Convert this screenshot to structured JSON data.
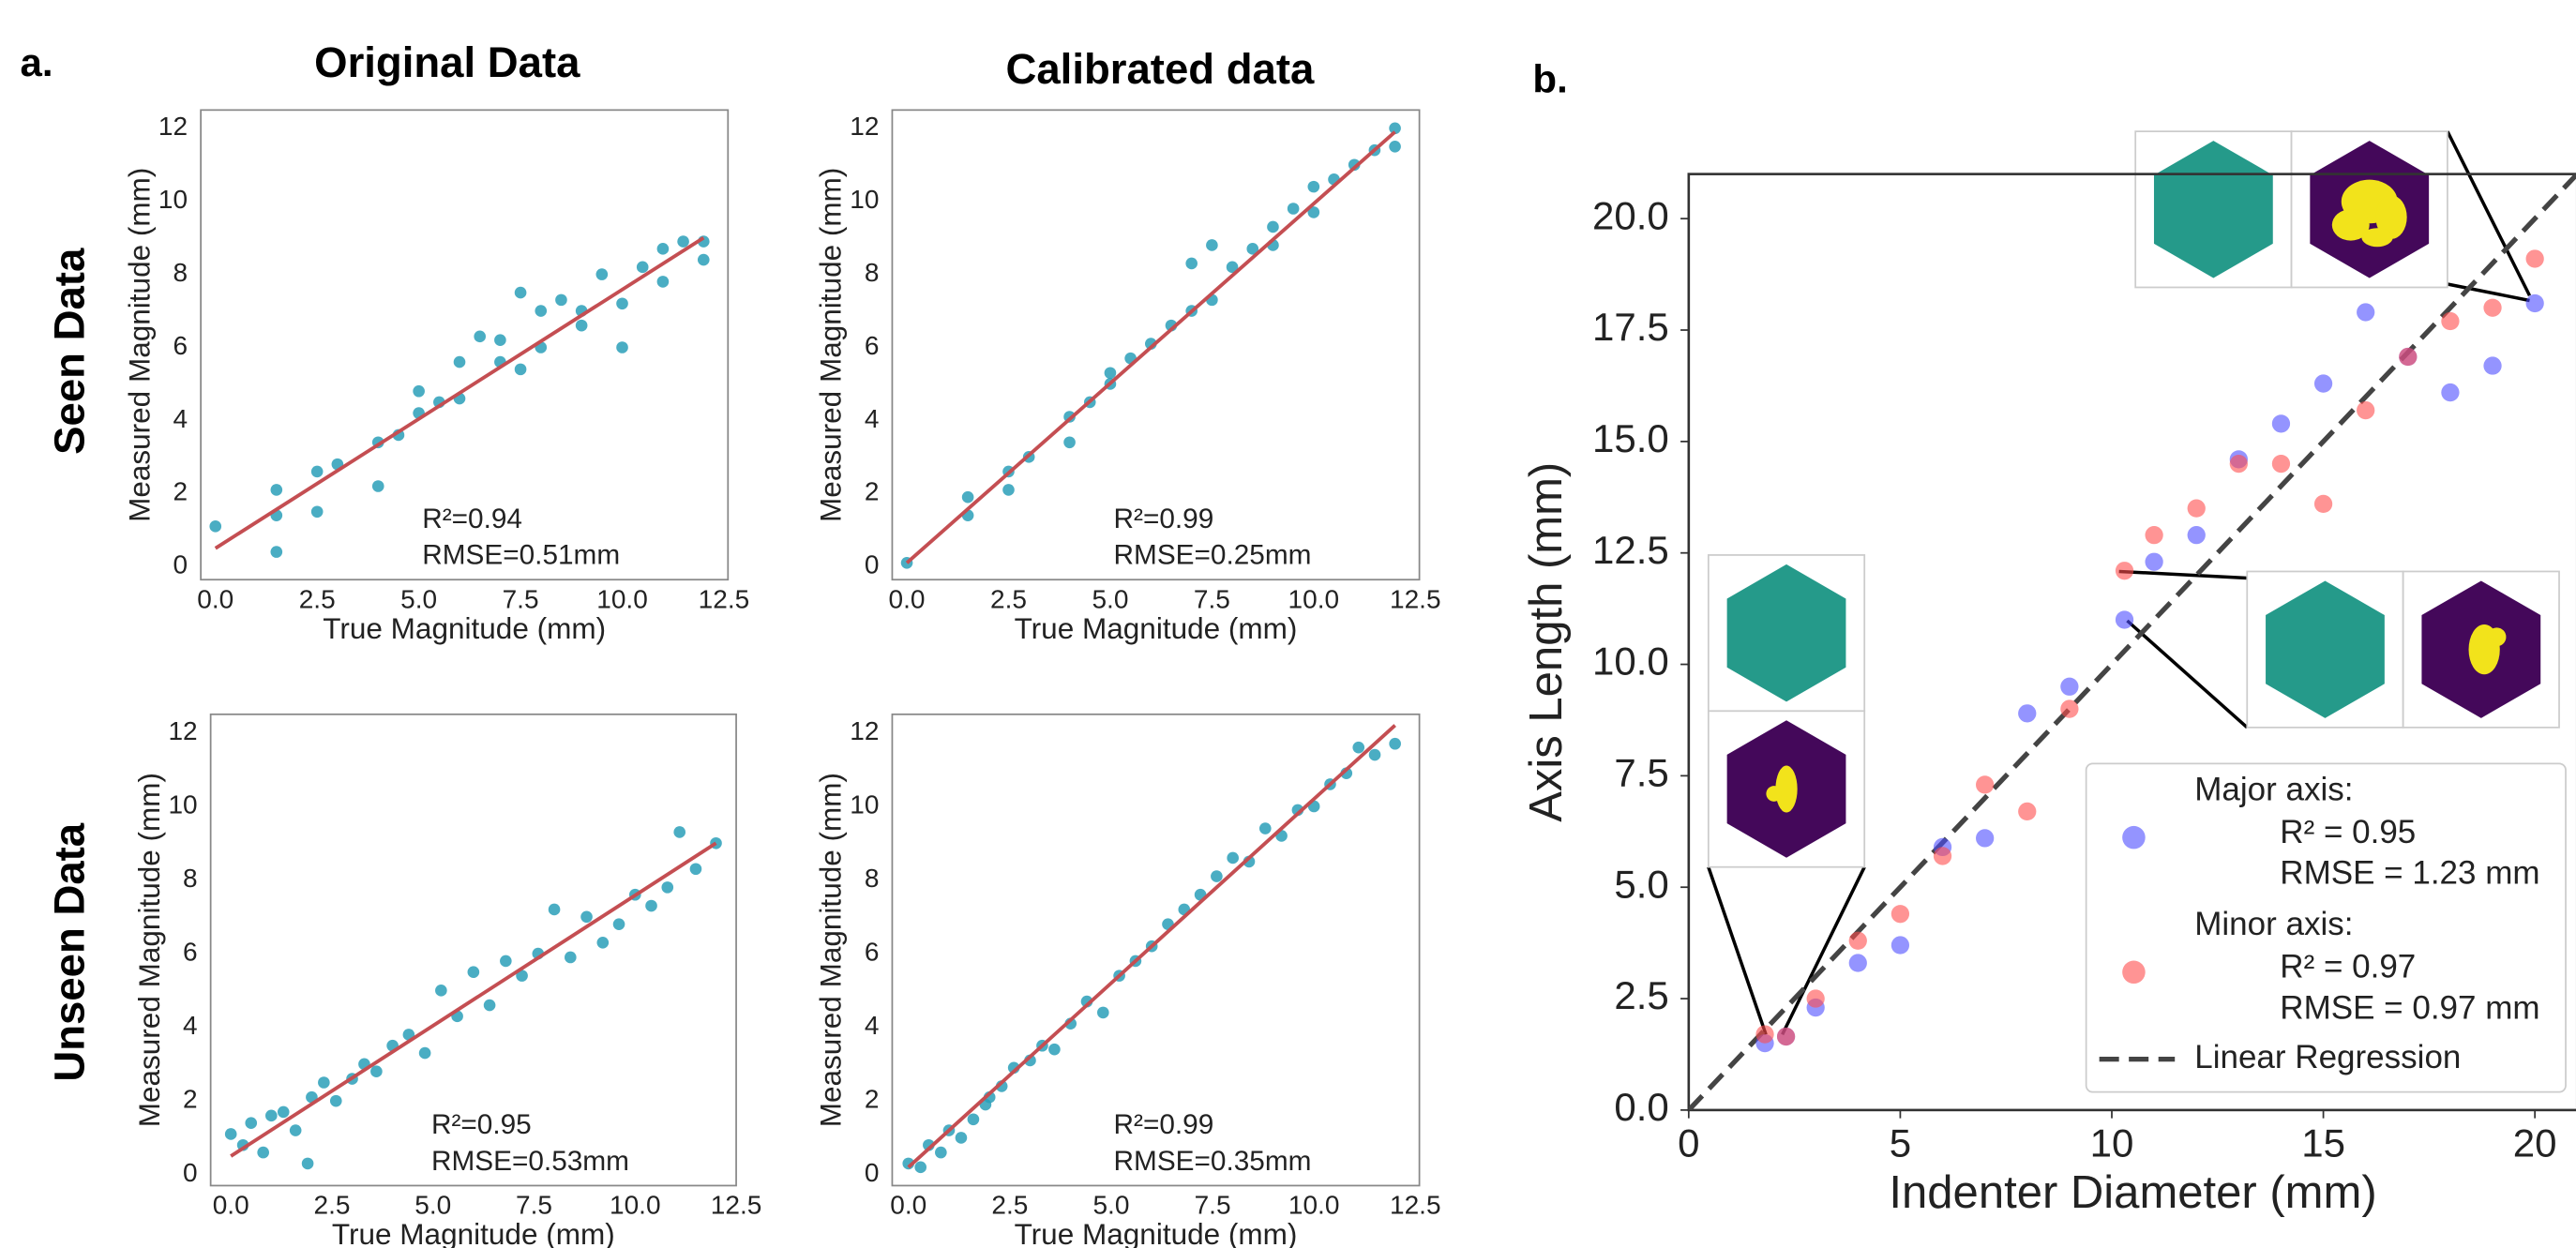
{
  "figure": {
    "panel_a_label": "a.",
    "panel_b_label": "b.",
    "column_titles": [
      "Original Data",
      "Calibrated data"
    ],
    "row_titles": [
      "Seen Data",
      "Unseen Data"
    ]
  },
  "chart_data": [
    {
      "type": "scatter",
      "xlabel": "True Magnitude (mm)",
      "ylabel": "Measured Magnitude (mm)",
      "xlim": [
        -0.36,
        12.6
      ],
      "ylim": [
        -0.36,
        12.5
      ],
      "xticks": [
        {
          "value": 0,
          "label": "0.0"
        },
        2.5,
        {
          "value": 5,
          "label": "5.0"
        },
        7.5,
        {
          "value": 10,
          "label": "10.0"
        },
        12.5
      ],
      "yticks": [
        0,
        2,
        4,
        6,
        8,
        10,
        12
      ],
      "color": "#2a9fb8",
      "x": [
        0,
        1.5,
        1.5,
        1.5,
        2.5,
        2.5,
        3,
        4,
        4,
        4.5,
        5,
        5,
        5.5,
        6,
        6,
        6.5,
        7,
        7,
        7.5,
        7.5,
        8,
        8,
        8.5,
        9,
        9,
        9.5,
        10,
        10,
        10.5,
        11,
        11,
        11.5,
        12,
        12
      ],
      "values": [
        1.1,
        2.1,
        1.4,
        0.4,
        2.6,
        1.5,
        2.8,
        3.4,
        2.2,
        3.6,
        4.8,
        4.2,
        4.5,
        5.6,
        4.6,
        6.3,
        5.6,
        6.2,
        7.5,
        5.4,
        7.0,
        6.0,
        7.3,
        7.0,
        6.6,
        8.0,
        7.2,
        6.0,
        8.2,
        8.7,
        7.8,
        8.9,
        8.9,
        8.4
      ],
      "fit": {
        "x": [
          0,
          12
        ],
        "values": [
          0.5,
          9
        ],
        "color": "#c44e52"
      },
      "annotations": [
        "R²=0.94",
        "RMSE=0.51mm"
      ]
    },
    {
      "type": "scatter",
      "xlabel": "True Magnitude (mm)",
      "ylabel": "Measured Magnitude (mm)",
      "xlim": [
        -0.36,
        12.6
      ],
      "ylim": [
        -0.36,
        12.5
      ],
      "xticks": [
        {
          "value": 0,
          "label": "0.0"
        },
        2.5,
        {
          "value": 5,
          "label": "5.0"
        },
        7.5,
        {
          "value": 10,
          "label": "10.0"
        },
        12.5
      ],
      "yticks": [
        0,
        2,
        4,
        6,
        8,
        10,
        12
      ],
      "color": "#2a9fb8",
      "x": [
        0,
        1.5,
        1.5,
        2.5,
        2.5,
        3,
        4,
        4,
        4.5,
        5,
        5,
        5.5,
        6,
        6.5,
        7,
        7,
        7.5,
        7.5,
        8,
        8.5,
        9,
        9,
        9.5,
        10,
        10,
        10.5,
        11,
        11.5,
        12,
        12
      ],
      "values": [
        0.1,
        1.9,
        1.4,
        2.6,
        2.1,
        3.0,
        4.1,
        3.4,
        4.5,
        5.3,
        5.0,
        5.7,
        6.1,
        6.6,
        8.3,
        7.0,
        8.8,
        7.3,
        8.2,
        8.7,
        9.3,
        8.8,
        9.8,
        10.4,
        9.7,
        10.6,
        11.0,
        11.4,
        12.0,
        11.5
      ],
      "fit": {
        "x": [
          0,
          12
        ],
        "values": [
          0.1,
          11.9
        ],
        "color": "#c44e52"
      },
      "annotations": [
        "R²=0.99",
        "RMSE=0.25mm"
      ]
    },
    {
      "type": "scatter",
      "xlabel": "True Magnitude (mm)",
      "ylabel": "Measured Magnitude (mm)",
      "xlim": [
        -0.5,
        12.5
      ],
      "ylim": [
        -0.3,
        12.5
      ],
      "xticks": [
        {
          "value": 0,
          "label": "0.0"
        },
        2.5,
        {
          "value": 5,
          "label": "5.0"
        },
        7.5,
        {
          "value": 10,
          "label": "10.0"
        },
        12.5
      ],
      "yticks": [
        0,
        2,
        4,
        6,
        8,
        10,
        12
      ],
      "color": "#2a9fb8",
      "x": [
        0,
        0.3,
        0.5,
        0.8,
        1,
        1.3,
        1.6,
        1.9,
        2,
        2.3,
        2.6,
        3,
        3.3,
        3.6,
        4,
        4.4,
        4.8,
        5.2,
        5.6,
        6,
        6.4,
        6.8,
        7.2,
        7.6,
        8,
        8.4,
        8.8,
        9.2,
        9.6,
        10,
        10.4,
        10.8,
        11.1,
        11.5,
        12
      ],
      "values": [
        1.1,
        0.8,
        1.4,
        0.6,
        1.6,
        1.7,
        1.2,
        0.3,
        2.1,
        2.5,
        2.0,
        2.6,
        3.0,
        2.8,
        3.5,
        3.8,
        3.3,
        5.0,
        4.3,
        5.5,
        4.6,
        5.8,
        5.4,
        6.0,
        7.2,
        5.9,
        7.0,
        6.3,
        6.8,
        7.6,
        7.3,
        7.8,
        9.3,
        8.3,
        9.0
      ],
      "fit": {
        "x": [
          0,
          12
        ],
        "values": [
          0.5,
          9
        ],
        "color": "#c44e52"
      },
      "annotations": [
        "R²=0.95",
        "RMSE=0.53mm"
      ]
    },
    {
      "type": "scatter",
      "xlabel": "True Magnitude (mm)",
      "ylabel": "Measured Magnitude (mm)",
      "xlim": [
        -0.4,
        12.6
      ],
      "ylim": [
        -0.3,
        12.5
      ],
      "xticks": [
        {
          "value": 0,
          "label": "0.0"
        },
        2.5,
        {
          "value": 5,
          "label": "5.0"
        },
        7.5,
        {
          "value": 10,
          "label": "10.0"
        },
        12.5
      ],
      "yticks": [
        0,
        2,
        4,
        6,
        8,
        10,
        12
      ],
      "color": "#2a9fb8",
      "x": [
        0,
        0.3,
        0.5,
        0.8,
        1,
        1.3,
        1.6,
        1.9,
        2,
        2.3,
        2.6,
        3,
        3.3,
        3.6,
        4,
        4.4,
        4.8,
        5.2,
        5.6,
        6,
        6.4,
        6.8,
        7.2,
        7.6,
        8,
        8.4,
        8.8,
        9.2,
        9.6,
        10,
        10.4,
        10.8,
        11.1,
        11.5,
        12
      ],
      "values": [
        0.3,
        0.2,
        0.8,
        0.6,
        1.2,
        1.0,
        1.5,
        1.9,
        2.1,
        2.4,
        2.9,
        3.1,
        3.5,
        3.4,
        4.1,
        4.7,
        4.4,
        5.4,
        5.8,
        6.2,
        6.8,
        7.2,
        7.6,
        8.1,
        8.6,
        8.5,
        9.4,
        9.2,
        9.9,
        10.0,
        10.6,
        10.9,
        11.6,
        11.4,
        11.7
      ],
      "fit": {
        "x": [
          0,
          12
        ],
        "values": [
          0.2,
          12.2
        ],
        "color": "#c44e52"
      },
      "annotations": [
        "R²=0.99",
        "RMSE=0.35mm"
      ]
    },
    {
      "type": "scatter",
      "xlabel": "Indenter Diameter (mm)",
      "ylabel": "Axis Length (mm)",
      "xlim": [
        0,
        21
      ],
      "ylim": [
        0,
        21
      ],
      "xticks": [
        0,
        5,
        10,
        15,
        20
      ],
      "yticks": [
        {
          "value": 0,
          "label": "0.0"
        },
        2.5,
        {
          "value": 5,
          "label": "5.0"
        },
        7.5,
        {
          "value": 10,
          "label": "10.0"
        },
        12.5,
        {
          "value": 15,
          "label": "15.0"
        },
        17.5,
        {
          "value": 20,
          "label": "20.0"
        }
      ],
      "series": [
        {
          "name": "Major axis:",
          "stats": [
            "R² = 0.95",
            "RMSE = 1.23 mm"
          ],
          "color": "#4d4dff",
          "x": [
            1.8,
            2.3,
            3,
            4,
            5,
            6,
            7,
            8,
            9,
            10.3,
            11,
            12,
            13,
            14,
            15,
            16,
            17,
            18,
            19,
            20
          ],
          "values": [
            1.5,
            1.65,
            2.3,
            3.3,
            3.7,
            5.9,
            6.1,
            8.9,
            9.5,
            11,
            12.3,
            12.9,
            14.6,
            15.4,
            16.3,
            17.9,
            16.9,
            16.1,
            16.7,
            18.1
          ]
        },
        {
          "name": "Minor axis:",
          "stats": [
            "R² = 0.97",
            "RMSE = 0.97 mm"
          ],
          "color": "#ff4d4d",
          "x": [
            1.8,
            2.3,
            3,
            4,
            5,
            6,
            7,
            8,
            9,
            10.3,
            11,
            12,
            13,
            14,
            15,
            16,
            17,
            18,
            19,
            20
          ],
          "values": [
            1.7,
            1.65,
            2.5,
            3.8,
            4.4,
            5.7,
            7.3,
            6.7,
            9,
            12.1,
            12.9,
            13.5,
            14.5,
            14.5,
            13.6,
            15.7,
            16.9,
            17.7,
            18,
            19.1
          ]
        }
      ],
      "regression": {
        "name": "Linear Regression",
        "x": [
          0,
          21
        ],
        "values": [
          0,
          21
        ],
        "color": "#444444"
      }
    }
  ]
}
